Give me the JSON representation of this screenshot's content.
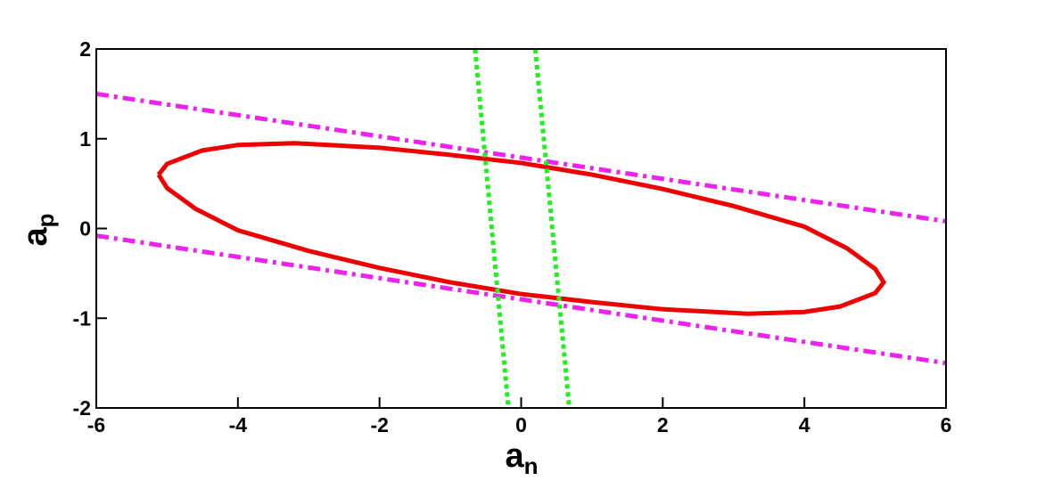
{
  "chart_data": {
    "type": "line",
    "xlabel": "a",
    "xlabel_sub": "n",
    "ylabel": "a",
    "ylabel_sub": "p",
    "xlim": [
      -6,
      6
    ],
    "ylim": [
      -2,
      2
    ],
    "xticks": [
      -6,
      -4,
      -2,
      0,
      2,
      4,
      6
    ],
    "yticks": [
      -2,
      -1,
      0,
      1,
      2
    ],
    "grid": false,
    "series": [
      {
        "color": "#ee0000",
        "dash": "solid",
        "x": [
          -5.12,
          -5,
          -4.5,
          -4,
          -3.2,
          -2,
          -1,
          0,
          1,
          2,
          3,
          4,
          4.6,
          5,
          5.12,
          5,
          4.5,
          4,
          3.2,
          2,
          1,
          0,
          -1,
          -2,
          -3,
          -4,
          -4.6,
          -5,
          -5.12
        ],
        "y": [
          0.6,
          0.72,
          0.87,
          0.93,
          0.95,
          0.9,
          0.82,
          0.73,
          0.6,
          0.44,
          0.25,
          0.02,
          -0.22,
          -0.45,
          -0.6,
          -0.72,
          -0.87,
          -0.93,
          -0.95,
          -0.9,
          -0.82,
          -0.73,
          -0.6,
          -0.44,
          -0.25,
          -0.02,
          0.22,
          0.45,
          0.6
        ]
      },
      {
        "color": "#ee22ee",
        "dash": "dashdot",
        "x": [
          -6,
          6
        ],
        "y": [
          1.5,
          0.08
        ]
      },
      {
        "color": "#ee22ee",
        "dash": "dashdot",
        "x": [
          -6,
          6
        ],
        "y": [
          -0.08,
          -1.5
        ]
      },
      {
        "color": "#22ee22",
        "dash": "dotted",
        "x": [
          -0.65,
          -0.18
        ],
        "y": [
          2,
          -2
        ]
      },
      {
        "color": "#22ee22",
        "dash": "dotted",
        "x": [
          0.2,
          0.68
        ],
        "y": [
          2,
          -2
        ]
      }
    ]
  }
}
